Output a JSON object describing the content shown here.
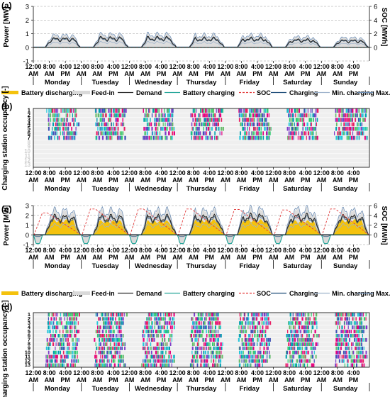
{
  "figure": {
    "panel_labels": [
      "(a)",
      "(b)",
      "(c)",
      "(d)"
    ],
    "days": [
      "Monday",
      "Tuesday",
      "Wednesday",
      "Thursday",
      "Friday",
      "Saturday",
      "Sunday"
    ],
    "time_ticks": [
      [
        "12:00",
        "AM"
      ],
      [
        "8:00",
        "AM"
      ],
      [
        "4:00",
        "PM"
      ]
    ],
    "legend": [
      "Battery discharging",
      "Feed-in",
      "Demand",
      "Battery charging",
      "SOC",
      "Charging",
      "Min. charging",
      "Max. charging"
    ],
    "colors": {
      "battery_discharging": "#f4c20d",
      "feed_in": "#d9d9d9",
      "demand": "#2b2b2b",
      "battery_charging": "#26a69a",
      "soc": "#e23b3b",
      "charging": "#1f4e79",
      "min_charging": "#9eb3cc",
      "max_charging": "#6f8fb5",
      "occupancy_palette": [
        "#e6007e",
        "#00a0b0",
        "#7d3cc8",
        "#2ecc71",
        "#e91e63",
        "#26c6da",
        "#3f51b5",
        "#66bb6a"
      ]
    }
  },
  "chart_data": [
    {
      "panel": "(a)",
      "type": "line",
      "ylabel": "Power [MW]",
      "y2label": "SOC [MWh]",
      "ylim": [
        -1,
        3
      ],
      "yticks": [
        -1,
        0,
        1,
        2,
        3
      ],
      "y2lim": [
        -2,
        6
      ],
      "y2ticks": [
        0,
        2,
        4,
        6
      ],
      "series": [
        {
          "name": "Demand",
          "daily_peak_MW": [
            0.7,
            0.75,
            0.75,
            0.7,
            0.7,
            0.6,
            0.55
          ]
        },
        {
          "name": "Max. charging",
          "daily_peak_MW": [
            1.0,
            1.1,
            1.0,
            1.0,
            1.0,
            0.9,
            0.85
          ]
        },
        {
          "name": "SOC",
          "values_MWh": [
            0,
            0,
            0,
            0,
            0,
            0,
            0
          ]
        }
      ]
    },
    {
      "panel": "(b)",
      "type": "heatmap",
      "ylabel": "Charging station occupancy [-]",
      "row_labels": [
        "1",
        "2",
        "3",
        "4",
        "5",
        "6",
        "7",
        "8",
        "9",
        "10",
        "11",
        "12",
        "13"
      ],
      "active_rows": 7
    },
    {
      "panel": "(c)",
      "type": "line",
      "ylabel": "Power [MW]",
      "y2label": "SOC [MWh]",
      "ylim": [
        -1,
        3
      ],
      "yticks": [
        -1,
        0,
        1,
        2,
        3
      ],
      "y2lim": [
        -2,
        6
      ],
      "y2ticks": [
        0,
        2,
        4,
        6
      ],
      "series": [
        {
          "name": "Demand",
          "daily_peak_MW": [
            2.0,
            2.0,
            2.0,
            2.0,
            2.1,
            2.1,
            2.0
          ]
        },
        {
          "name": "Battery discharging",
          "daily_peak_MW": [
            1.6,
            1.5,
            1.5,
            1.6,
            1.6,
            1.5,
            1.6
          ]
        },
        {
          "name": "Battery charging",
          "daily_trough_MW": [
            -0.9,
            -0.9,
            -0.9,
            -0.9,
            -0.9,
            -0.9,
            -0.9
          ]
        },
        {
          "name": "SOC",
          "daily_peak_MWh": [
            4.5,
            5.3,
            5.3,
            5.3,
            5.2,
            5.1,
            5.3
          ]
        }
      ]
    },
    {
      "panel": "(d)",
      "type": "heatmap",
      "ylabel": "Charging station occupancy [-]",
      "row_labels": [
        "1",
        "2",
        "3",
        "4",
        "5",
        "6",
        "7",
        "8",
        "9",
        "10",
        "11",
        "12",
        "13"
      ],
      "active_rows": 13
    }
  ]
}
